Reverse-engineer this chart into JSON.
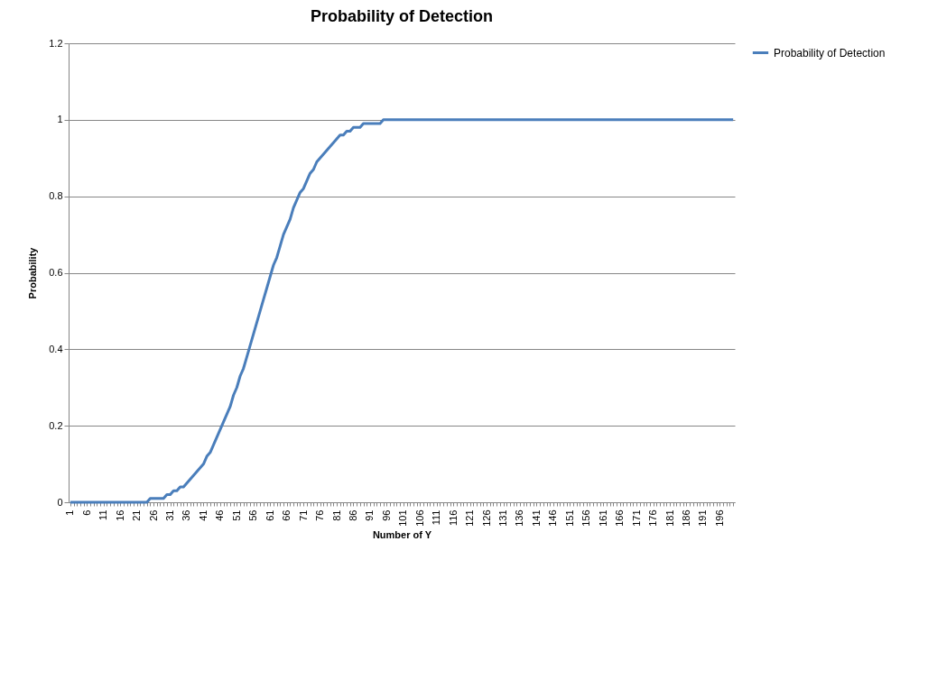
{
  "chart_data": {
    "type": "line",
    "title": "Probability of Detection",
    "xlabel": "Number of Y",
    "ylabel": "Probability",
    "categories": [
      "1",
      null,
      null,
      null,
      null,
      "6",
      null,
      null,
      null,
      null,
      "11",
      null,
      null,
      null,
      null,
      "16",
      null,
      null,
      null,
      null,
      "21",
      null,
      null,
      null,
      null,
      "26",
      null,
      null,
      null,
      null,
      "31",
      null,
      null,
      null,
      null,
      "36",
      null,
      null,
      null,
      null,
      "41",
      null,
      null,
      null,
      null,
      "46",
      null,
      null,
      null,
      null,
      "51",
      null,
      null,
      null,
      null,
      "56",
      null,
      null,
      null,
      null,
      "61",
      null,
      null,
      null,
      null,
      "66",
      null,
      null,
      null,
      null,
      "71",
      null,
      null,
      null,
      null,
      "76",
      null,
      null,
      null,
      null,
      "81",
      null,
      null,
      null,
      null,
      "86",
      null,
      null,
      null,
      null,
      "91",
      null,
      null,
      null,
      null,
      "96",
      null,
      null,
      null,
      null,
      "101",
      null,
      null,
      null,
      null,
      "106",
      null,
      null,
      null,
      null,
      "111",
      null,
      null,
      null,
      null,
      "116",
      null,
      null,
      null,
      null,
      "121",
      null,
      null,
      null,
      null,
      "126",
      null,
      null,
      null,
      null,
      "131",
      null,
      null,
      null,
      null,
      "136",
      null,
      null,
      null,
      null,
      "141",
      null,
      null,
      null,
      null,
      "146",
      null,
      null,
      null,
      null,
      "151",
      null,
      null,
      null,
      null,
      "156",
      null,
      null,
      null,
      null,
      "161",
      null,
      null,
      null,
      null,
      "166",
      null,
      null,
      null,
      null,
      "171",
      null,
      null,
      null,
      null,
      "176",
      null,
      null,
      null,
      null,
      "181",
      null,
      null,
      null,
      null,
      "186",
      null,
      null,
      null,
      null,
      "191",
      null,
      null,
      null,
      null,
      "196",
      null,
      null,
      null,
      null
    ],
    "series": [
      {
        "name": "Probability of Detection",
        "color": "#4a7ebb",
        "values": [
          0,
          0,
          0,
          0,
          0,
          0,
          0,
          0,
          0,
          0,
          0,
          0,
          0,
          0,
          0,
          0,
          0,
          0,
          0,
          0,
          0,
          0,
          0,
          0,
          0.01,
          0.01,
          0.01,
          0.01,
          0.01,
          0.02,
          0.02,
          0.03,
          0.03,
          0.04,
          0.04,
          0.05,
          0.06,
          0.07,
          0.08,
          0.09,
          0.1,
          0.12,
          0.13,
          0.15,
          0.17,
          0.19,
          0.21,
          0.23,
          0.25,
          0.28,
          0.3,
          0.33,
          0.35,
          0.38,
          0.41,
          0.44,
          0.47,
          0.5,
          0.53,
          0.56,
          0.59,
          0.62,
          0.64,
          0.67,
          0.7,
          0.72,
          0.74,
          0.77,
          0.79,
          0.81,
          0.82,
          0.84,
          0.86,
          0.87,
          0.89,
          0.9,
          0.91,
          0.92,
          0.93,
          0.94,
          0.95,
          0.96,
          0.96,
          0.97,
          0.97,
          0.98,
          0.98,
          0.98,
          0.99,
          0.99,
          0.99,
          0.99,
          0.99,
          0.99,
          1,
          1,
          1,
          1,
          1,
          1,
          1,
          1,
          1,
          1,
          1,
          1,
          1,
          1,
          1,
          1,
          1,
          1,
          1,
          1,
          1,
          1,
          1,
          1,
          1,
          1,
          1,
          1,
          1,
          1,
          1,
          1,
          1,
          1,
          1,
          1,
          1,
          1,
          1,
          1,
          1,
          1,
          1,
          1,
          1,
          1,
          1,
          1,
          1,
          1,
          1,
          1,
          1,
          1,
          1,
          1,
          1,
          1,
          1,
          1,
          1,
          1,
          1,
          1,
          1,
          1,
          1,
          1,
          1,
          1,
          1,
          1,
          1,
          1,
          1,
          1,
          1,
          1,
          1,
          1,
          1,
          1,
          1,
          1,
          1,
          1,
          1,
          1,
          1,
          1,
          1,
          1,
          1,
          1,
          1,
          1,
          1,
          1,
          1,
          1,
          1,
          1,
          1,
          1,
          1,
          1
        ]
      }
    ],
    "ylim": [
      0,
      1.2
    ],
    "yticks": [
      0,
      0.2,
      0.4,
      0.6,
      0.8,
      1,
      1.2
    ],
    "grid": "y",
    "legend": "right"
  }
}
